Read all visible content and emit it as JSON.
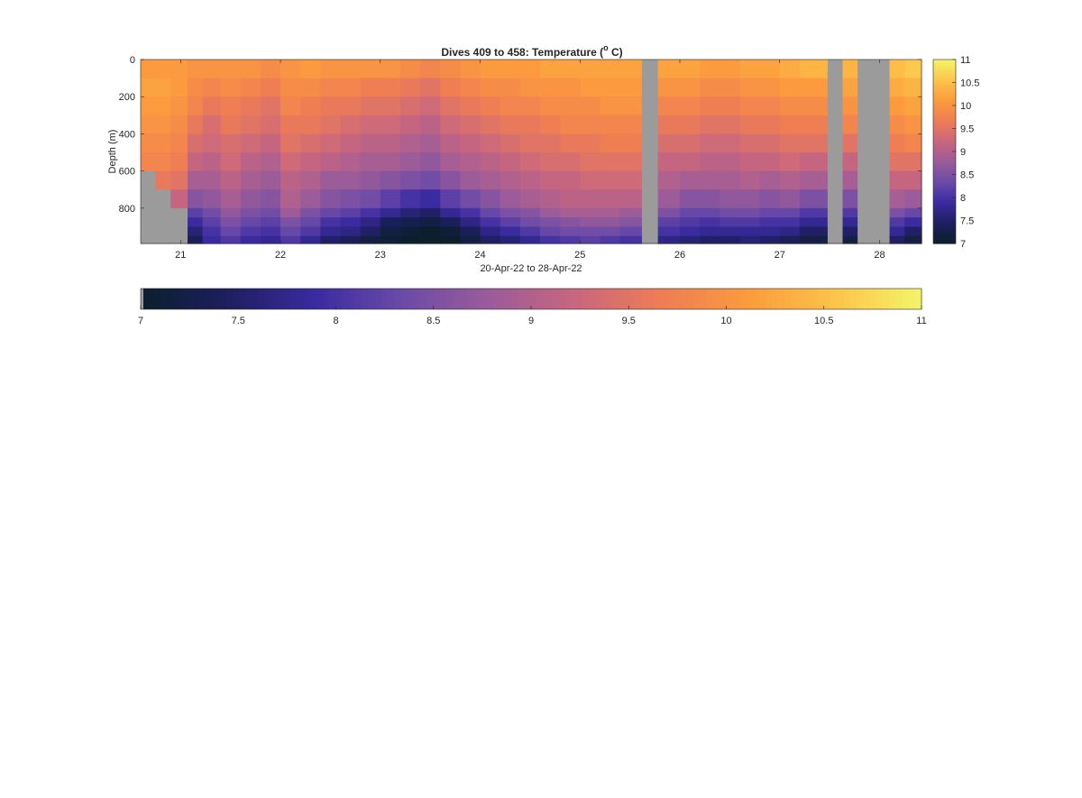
{
  "chart_data": {
    "type": "heatmap",
    "title": "Dives 409 to 458: Temperature (",
    "title_unit_sup": "o",
    "title_unit_rest": " C)",
    "xlabel": "20-Apr-22 to 28-Apr-22",
    "ylabel": "Depth (m)",
    "xlim": [
      20.6,
      28.42
    ],
    "ylim": [
      0,
      990
    ],
    "y_reversed": true,
    "x_ticks": [
      21,
      22,
      23,
      24,
      25,
      26,
      27,
      28
    ],
    "x_tick_labels": [
      "21",
      "22",
      "23",
      "24",
      "25",
      "26",
      "27",
      "28"
    ],
    "y_ticks": [
      0,
      200,
      400,
      600,
      800
    ],
    "y_tick_labels": [
      "0",
      "200",
      "400",
      "600",
      "800"
    ],
    "color_range": [
      7,
      11
    ],
    "colormap": [
      "#0b1f2d",
      "#1d1f5e",
      "#3a2aa0",
      "#6a4aa8",
      "#9a5b9a",
      "#c8667f",
      "#ee7d55",
      "#fb9b3d",
      "#fdc34a",
      "#f4f46a"
    ],
    "missing_color": "#9b9b9b",
    "colorbar_right": {
      "ticks": [
        7,
        7.5,
        8,
        8.5,
        9,
        9.5,
        10,
        10.5,
        11
      ],
      "tick_labels": [
        "7",
        "7.5",
        "8",
        "8.5",
        "9",
        "9.5",
        "10",
        "10.5",
        "11"
      ]
    },
    "colorbar_bottom": {
      "ticks": [
        7,
        7.5,
        8,
        8.5,
        9,
        9.5,
        10,
        10.5,
        11
      ],
      "tick_labels": [
        "7",
        "7.5",
        "8",
        "8.5",
        "9",
        "9.5",
        "10",
        "10.5",
        "11"
      ]
    },
    "depth_levels": [
      0,
      100,
      200,
      300,
      400,
      500,
      600,
      700,
      800,
      850,
      900,
      950
    ],
    "profiles": [
      {
        "start": 20.6,
        "end": 20.75,
        "max_depth": 480,
        "temps": [
          10.1,
          10.2,
          10.1,
          10.0,
          9.9,
          9.8,
          null,
          null,
          null,
          null,
          null,
          null
        ]
      },
      {
        "start": 20.75,
        "end": 20.9,
        "max_depth": 650,
        "temps": [
          10.1,
          10.2,
          10.1,
          10.0,
          9.9,
          9.8,
          9.6,
          null,
          null,
          null,
          null,
          null
        ]
      },
      {
        "start": 20.9,
        "end": 21.07,
        "max_depth": 800,
        "temps": [
          10.1,
          10.1,
          10.0,
          9.9,
          9.8,
          9.7,
          9.5,
          9.2,
          null,
          null,
          null,
          null
        ]
      },
      {
        "start": 21.07,
        "end": 21.22,
        "max_depth": 990,
        "temps": [
          10.0,
          9.9,
          9.8,
          9.6,
          9.4,
          9.2,
          8.9,
          8.6,
          8.2,
          7.9,
          7.6,
          7.4
        ]
      },
      {
        "start": 21.22,
        "end": 21.4,
        "max_depth": 990,
        "temps": [
          10.0,
          9.8,
          9.6,
          9.4,
          9.3,
          9.1,
          8.9,
          8.7,
          8.4,
          8.2,
          8.0,
          7.9
        ]
      },
      {
        "start": 21.4,
        "end": 21.6,
        "max_depth": 990,
        "temps": [
          10.0,
          9.9,
          9.7,
          9.6,
          9.4,
          9.3,
          9.1,
          8.9,
          8.7,
          8.5,
          8.3,
          8.1
        ]
      },
      {
        "start": 21.6,
        "end": 21.8,
        "max_depth": 990,
        "temps": [
          10.0,
          9.8,
          9.6,
          9.5,
          9.3,
          9.1,
          8.9,
          8.7,
          8.5,
          8.3,
          8.1,
          7.9
        ]
      },
      {
        "start": 21.8,
        "end": 22.0,
        "max_depth": 990,
        "temps": [
          9.9,
          9.7,
          9.5,
          9.4,
          9.2,
          9.0,
          8.8,
          8.6,
          8.4,
          8.2,
          8.0,
          7.8
        ]
      },
      {
        "start": 22.0,
        "end": 22.2,
        "max_depth": 990,
        "temps": [
          10.0,
          9.9,
          9.8,
          9.6,
          9.5,
          9.3,
          9.1,
          9.0,
          8.8,
          8.5,
          8.3,
          8.1
        ]
      },
      {
        "start": 22.2,
        "end": 22.4,
        "max_depth": 990,
        "temps": [
          10.1,
          9.9,
          9.7,
          9.6,
          9.4,
          9.2,
          9.0,
          8.8,
          8.5,
          8.3,
          8.1,
          7.8
        ]
      },
      {
        "start": 22.4,
        "end": 22.6,
        "max_depth": 990,
        "temps": [
          10.0,
          9.8,
          9.6,
          9.5,
          9.3,
          9.1,
          8.8,
          8.6,
          8.3,
          8.0,
          7.8,
          7.5
        ]
      },
      {
        "start": 22.6,
        "end": 22.8,
        "max_depth": 990,
        "temps": [
          10.0,
          9.8,
          9.6,
          9.4,
          9.2,
          9.0,
          8.8,
          8.5,
          8.2,
          7.9,
          7.7,
          7.4
        ]
      },
      {
        "start": 22.8,
        "end": 23.0,
        "max_depth": 990,
        "temps": [
          10.0,
          9.7,
          9.5,
          9.3,
          9.1,
          8.9,
          8.7,
          8.4,
          8.0,
          7.7,
          7.5,
          7.2
        ]
      },
      {
        "start": 23.0,
        "end": 23.2,
        "max_depth": 990,
        "temps": [
          10.0,
          9.7,
          9.5,
          9.3,
          9.1,
          8.9,
          8.6,
          8.2,
          7.8,
          7.4,
          7.2,
          7.1
        ]
      },
      {
        "start": 23.2,
        "end": 23.4,
        "max_depth": 990,
        "temps": [
          9.9,
          9.6,
          9.4,
          9.2,
          9.0,
          8.8,
          8.5,
          8.0,
          7.6,
          7.3,
          7.1,
          7.0
        ]
      },
      {
        "start": 23.4,
        "end": 23.6,
        "max_depth": 990,
        "temps": [
          9.8,
          9.5,
          9.3,
          9.1,
          8.9,
          8.7,
          8.4,
          7.9,
          7.5,
          7.2,
          7.0,
          7.0
        ]
      },
      {
        "start": 23.6,
        "end": 23.8,
        "max_depth": 990,
        "temps": [
          9.9,
          9.7,
          9.5,
          9.3,
          9.1,
          8.9,
          8.6,
          8.2,
          7.8,
          7.4,
          7.1,
          7.0
        ]
      },
      {
        "start": 23.8,
        "end": 24.0,
        "max_depth": 990,
        "temps": [
          10.0,
          9.8,
          9.6,
          9.4,
          9.2,
          9.0,
          8.8,
          8.4,
          8.0,
          7.7,
          7.4,
          7.2
        ]
      },
      {
        "start": 24.0,
        "end": 24.2,
        "max_depth": 990,
        "temps": [
          10.1,
          9.9,
          9.7,
          9.5,
          9.3,
          9.1,
          8.9,
          8.6,
          8.3,
          8.0,
          7.7,
          7.5
        ]
      },
      {
        "start": 24.2,
        "end": 24.4,
        "max_depth": 990,
        "temps": [
          10.1,
          9.9,
          9.8,
          9.6,
          9.4,
          9.2,
          9.0,
          8.8,
          8.5,
          8.2,
          7.9,
          7.6
        ]
      },
      {
        "start": 24.4,
        "end": 24.6,
        "max_depth": 990,
        "temps": [
          10.1,
          10.0,
          9.8,
          9.6,
          9.5,
          9.3,
          9.1,
          8.9,
          8.6,
          8.4,
          8.1,
          7.8
        ]
      },
      {
        "start": 24.6,
        "end": 24.8,
        "max_depth": 990,
        "temps": [
          10.2,
          10.0,
          9.9,
          9.7,
          9.5,
          9.4,
          9.2,
          9.0,
          8.8,
          8.5,
          8.3,
          8.0
        ]
      },
      {
        "start": 24.8,
        "end": 25.0,
        "max_depth": 990,
        "temps": [
          10.2,
          10.0,
          9.9,
          9.8,
          9.6,
          9.4,
          9.2,
          9.1,
          8.9,
          8.6,
          8.4,
          8.1
        ]
      },
      {
        "start": 25.0,
        "end": 25.2,
        "max_depth": 990,
        "temps": [
          10.2,
          10.1,
          9.9,
          9.8,
          9.6,
          9.5,
          9.3,
          9.1,
          8.9,
          8.7,
          8.4,
          8.2
        ]
      },
      {
        "start": 25.2,
        "end": 25.4,
        "max_depth": 990,
        "temps": [
          10.2,
          10.1,
          10.0,
          9.8,
          9.7,
          9.5,
          9.3,
          9.1,
          8.9,
          8.7,
          8.4,
          8.1
        ]
      },
      {
        "start": 25.4,
        "end": 25.62,
        "max_depth": 990,
        "temps": [
          10.2,
          10.1,
          10.0,
          9.8,
          9.7,
          9.5,
          9.3,
          9.1,
          8.8,
          8.6,
          8.3,
          8.0
        ]
      },
      {
        "start": 25.62,
        "end": 25.78,
        "max_depth": 990,
        "temps": [
          null,
          null,
          null,
          null,
          null,
          null,
          null,
          null,
          null,
          null,
          null,
          null
        ]
      },
      {
        "start": 25.78,
        "end": 26.0,
        "max_depth": 990,
        "temps": [
          10.2,
          10.0,
          9.8,
          9.6,
          9.4,
          9.2,
          9.0,
          8.8,
          8.5,
          8.2,
          8.0,
          7.7
        ]
      },
      {
        "start": 26.0,
        "end": 26.2,
        "max_depth": 990,
        "temps": [
          10.2,
          10.0,
          9.8,
          9.6,
          9.4,
          9.2,
          8.9,
          8.6,
          8.3,
          8.1,
          7.9,
          7.6
        ]
      },
      {
        "start": 26.2,
        "end": 26.4,
        "max_depth": 990,
        "temps": [
          10.1,
          9.9,
          9.7,
          9.5,
          9.3,
          9.1,
          8.9,
          8.6,
          8.3,
          8.0,
          7.8,
          7.5
        ]
      },
      {
        "start": 26.4,
        "end": 26.6,
        "max_depth": 990,
        "temps": [
          10.1,
          9.9,
          9.7,
          9.5,
          9.3,
          9.1,
          8.9,
          8.7,
          8.4,
          8.1,
          7.8,
          7.5
        ]
      },
      {
        "start": 26.6,
        "end": 26.8,
        "max_depth": 990,
        "temps": [
          10.2,
          10.0,
          9.8,
          9.6,
          9.4,
          9.2,
          9.0,
          8.7,
          8.4,
          8.1,
          7.8,
          7.6
        ]
      },
      {
        "start": 26.8,
        "end": 27.0,
        "max_depth": 990,
        "temps": [
          10.2,
          10.0,
          9.8,
          9.6,
          9.4,
          9.2,
          8.9,
          8.6,
          8.3,
          8.0,
          7.8,
          7.5
        ]
      },
      {
        "start": 27.0,
        "end": 27.2,
        "max_depth": 990,
        "temps": [
          10.3,
          10.1,
          9.9,
          9.7,
          9.5,
          9.3,
          9.0,
          8.7,
          8.3,
          8.0,
          7.7,
          7.4
        ]
      },
      {
        "start": 27.2,
        "end": 27.48,
        "max_depth": 990,
        "temps": [
          10.4,
          10.1,
          9.9,
          9.7,
          9.5,
          9.2,
          8.9,
          8.5,
          8.1,
          7.8,
          7.5,
          7.2
        ]
      },
      {
        "start": 27.48,
        "end": 27.63,
        "max_depth": 990,
        "temps": [
          null,
          null,
          null,
          null,
          null,
          null,
          null,
          null,
          null,
          null,
          null,
          null
        ]
      },
      {
        "start": 27.63,
        "end": 27.78,
        "max_depth": 990,
        "temps": [
          10.4,
          10.2,
          10.0,
          9.8,
          9.5,
          9.2,
          8.9,
          8.5,
          8.1,
          7.8,
          7.5,
          7.2
        ]
      },
      {
        "start": 27.78,
        "end": 28.1,
        "max_depth": 990,
        "temps": [
          null,
          null,
          null,
          null,
          null,
          null,
          null,
          null,
          null,
          null,
          null,
          null
        ]
      },
      {
        "start": 28.1,
        "end": 28.25,
        "max_depth": 990,
        "temps": [
          10.5,
          10.3,
          10.1,
          9.9,
          9.7,
          9.5,
          9.2,
          8.9,
          8.5,
          8.1,
          7.8,
          7.5
        ]
      },
      {
        "start": 28.25,
        "end": 28.42,
        "max_depth": 990,
        "temps": [
          10.6,
          10.4,
          10.2,
          10.0,
          9.8,
          9.5,
          9.2,
          8.8,
          8.3,
          7.9,
          7.5,
          7.2
        ]
      }
    ]
  }
}
